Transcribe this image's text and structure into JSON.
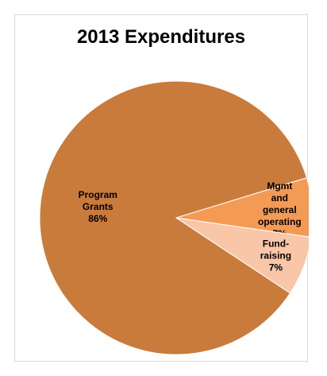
{
  "chart_data": {
    "type": "pie",
    "title": "2013 Expenditures",
    "slices": [
      {
        "label_lines": [
          "Program",
          "Grants"
        ],
        "value": 86,
        "value_label": "86%",
        "color": "#c97b3c"
      },
      {
        "label_lines": [
          "Mgmt",
          "and",
          "general",
          "operating"
        ],
        "value": 7,
        "value_label": "7%",
        "color": "#f39a55"
      },
      {
        "label_lines": [
          "Fund-",
          "raising"
        ],
        "value": 7,
        "value_label": "7%",
        "color": "#f9c6a8"
      }
    ],
    "legend": "none",
    "data_labels": "on slices"
  }
}
